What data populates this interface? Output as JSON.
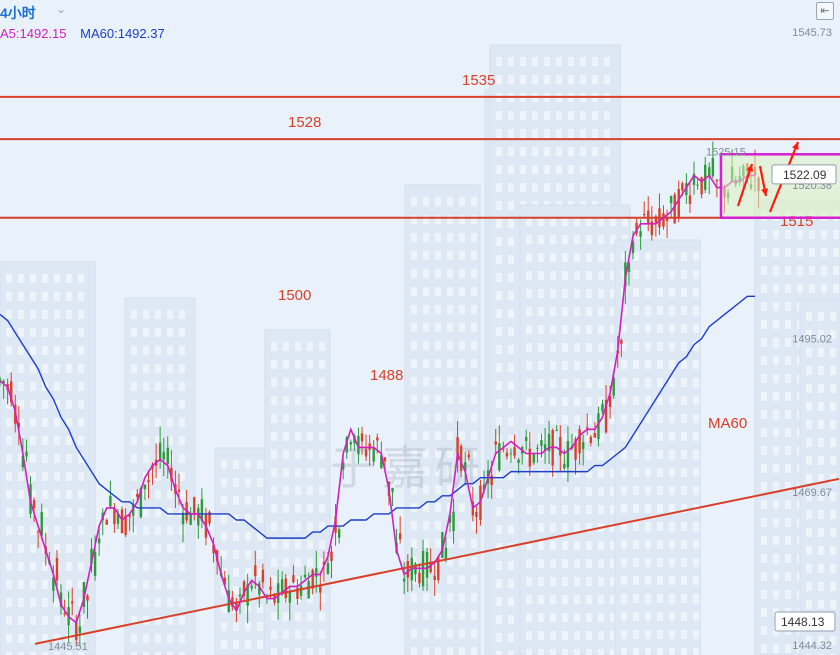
{
  "header": {
    "period": "4小时",
    "ma5_text": "A5:1492.15",
    "ma60_text": "MA60:1492.37"
  },
  "colors": {
    "ma5": "#d31fc0",
    "ma60": "#1c3ec9",
    "annotation": "#d9402a",
    "up_candle": "#2c9a3a",
    "down_candle": "#d9402a",
    "highlight_box": "#d61fd4",
    "arrow": "#ff1a10"
  },
  "chart_data": {
    "type": "candlestick",
    "ylim": [
      1444.32,
      1545.73
    ],
    "price_axis_labels": [
      "1545.73",
      "1520.38",
      "1495.02",
      "1469.67",
      "1444.32"
    ],
    "last_price": "1522.09",
    "current_marker": "1448.13",
    "high_label": "1525.15",
    "low_label": "1445.51",
    "horizontal_levels": [
      {
        "value": 1535,
        "label": "1535"
      },
      {
        "value": 1528,
        "label": "1528"
      },
      {
        "value": 1515,
        "label": "1515"
      }
    ],
    "text_annotations": [
      {
        "label": "1500",
        "value": 1500
      },
      {
        "label": "1488",
        "value": 1488
      },
      {
        "label": "MA60",
        "value": 1497
      }
    ],
    "trendline": [
      [
        0,
        1444.5
      ],
      [
        110,
        1471.8
      ]
    ],
    "x": [
      0,
      1,
      2,
      3,
      4,
      5,
      6,
      7,
      8,
      9,
      10,
      11,
      12,
      13,
      14,
      15,
      16,
      17,
      18,
      19,
      20,
      21,
      22,
      23,
      24,
      25,
      26,
      27,
      28,
      29,
      30,
      31,
      32,
      33,
      34,
      35,
      36,
      37,
      38,
      39,
      40,
      41,
      42,
      43,
      44,
      45,
      46,
      47,
      48,
      49,
      50,
      51,
      52,
      53,
      54,
      55,
      56,
      57,
      58,
      59,
      60,
      61,
      62,
      63,
      64,
      65,
      66,
      67,
      68,
      69,
      70,
      71,
      72,
      73,
      74,
      75,
      76,
      77,
      78,
      79,
      80,
      81,
      82,
      83,
      84,
      85,
      86,
      87,
      88,
      89,
      90,
      91,
      92,
      93,
      94,
      95,
      96,
      97,
      98,
      99
    ],
    "ma5": [
      1488,
      1487,
      1483,
      1476,
      1468,
      1464,
      1460,
      1456,
      1451,
      1449,
      1448,
      1452,
      1458,
      1464,
      1467,
      1467,
      1465,
      1466,
      1468,
      1472,
      1474,
      1475,
      1474,
      1470,
      1467,
      1466,
      1466,
      1464,
      1461,
      1456,
      1452,
      1450,
      1453,
      1455,
      1454,
      1452,
      1452,
      1453,
      1454,
      1454,
      1455,
      1456,
      1456,
      1459,
      1465,
      1476,
      1480,
      1477,
      1477,
      1477,
      1476,
      1470,
      1460,
      1456,
      1457,
      1457,
      1457,
      1458,
      1460,
      1466,
      1476,
      1473,
      1467,
      1468,
      1472,
      1476,
      1477,
      1478,
      1477,
      1476,
      1476,
      1476,
      1477,
      1477,
      1476,
      1477,
      1479,
      1480,
      1480,
      1482,
      1486,
      1493,
      1505,
      1512,
      1514,
      1514,
      1514,
      1515,
      1516,
      1518,
      1520,
      1522,
      1521,
      1522,
      1520,
      1520,
      1521,
      1521,
      1522,
      1522
    ],
    "ma60": [
      1499,
      1498,
      1496,
      1494,
      1492,
      1490,
      1487,
      1485,
      1482,
      1480,
      1477,
      1475,
      1473,
      1471,
      1470,
      1469,
      1468,
      1468,
      1467,
      1467,
      1467,
      1467,
      1466,
      1466,
      1466,
      1466,
      1466,
      1466,
      1466,
      1466,
      1466,
      1465,
      1465,
      1464,
      1463,
      1462,
      1462,
      1462,
      1462,
      1462,
      1462,
      1463,
      1463,
      1464,
      1464,
      1464,
      1465,
      1465,
      1465,
      1466,
      1466,
      1466,
      1467,
      1467,
      1467,
      1467,
      1468,
      1468,
      1469,
      1469,
      1470,
      1471,
      1471,
      1472,
      1472,
      1472,
      1472,
      1473,
      1473,
      1473,
      1473,
      1473,
      1473,
      1473,
      1473,
      1473,
      1473,
      1473,
      1474,
      1474,
      1475,
      1476,
      1477,
      1479,
      1481,
      1483,
      1485,
      1487,
      1489,
      1491,
      1492,
      1494,
      1495,
      1497,
      1498,
      1499,
      1500,
      1501,
      1502,
      1502
    ]
  }
}
